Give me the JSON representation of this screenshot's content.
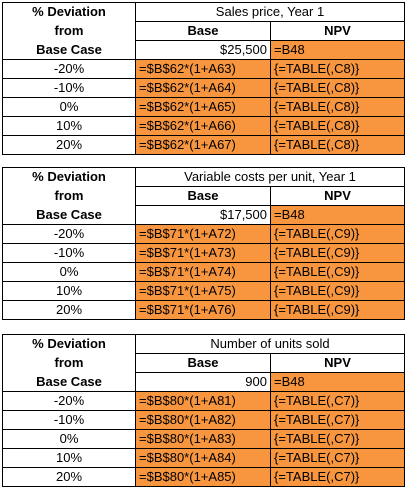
{
  "tables": [
    {
      "header_lines": [
        "% Deviation",
        "from",
        "Base Case"
      ],
      "title": "Sales price, Year 1",
      "col_base": "Base",
      "col_npv": "NPV",
      "base_value": "$25,500",
      "base_npv": "=B48",
      "rows": [
        {
          "pct": "-20%",
          "formula": "=$B$62*(1+A63)",
          "npv": "{=TABLE(,C8)}"
        },
        {
          "pct": "-10%",
          "formula": "=$B$62*(1+A64)",
          "npv": "{=TABLE(,C8)}"
        },
        {
          "pct": "0%",
          "formula": "=$B$62*(1+A65)",
          "npv": "{=TABLE(,C8)}"
        },
        {
          "pct": "10%",
          "formula": "=$B$62*(1+A66)",
          "npv": "{=TABLE(,C8)}"
        },
        {
          "pct": "20%",
          "formula": "=$B$62*(1+A67)",
          "npv": "{=TABLE(,C8)}"
        }
      ]
    },
    {
      "header_lines": [
        "% Deviation",
        "from",
        "Base Case"
      ],
      "title": "Variable costs per unit, Year 1",
      "col_base": "Base",
      "col_npv": "NPV",
      "base_value": "$17,500",
      "base_npv": "=B48",
      "rows": [
        {
          "pct": "-20%",
          "formula": "=$B$71*(1+A72)",
          "npv": "{=TABLE(,C9)}"
        },
        {
          "pct": "-10%",
          "formula": "=$B$71*(1+A73)",
          "npv": "{=TABLE(,C9)}"
        },
        {
          "pct": "0%",
          "formula": "=$B$71*(1+A74)",
          "npv": "{=TABLE(,C9)}"
        },
        {
          "pct": "10%",
          "formula": "=$B$71*(1+A75)",
          "npv": "{=TABLE(,C9)}"
        },
        {
          "pct": "20%",
          "formula": "=$B$71*(1+A76)",
          "npv": "{=TABLE(,C9)}"
        }
      ]
    },
    {
      "header_lines": [
        "% Deviation",
        "from",
        "Base Case"
      ],
      "title": "Number of units sold",
      "col_base": "Base",
      "col_npv": "NPV",
      "base_value": "900",
      "base_npv": "=B48",
      "rows": [
        {
          "pct": "-20%",
          "formula": "=$B$80*(1+A81)",
          "npv": "{=TABLE(,C7)}"
        },
        {
          "pct": "-10%",
          "formula": "=$B$80*(1+A82)",
          "npv": "{=TABLE(,C7)}"
        },
        {
          "pct": "0%",
          "formula": "=$B$80*(1+A83)",
          "npv": "{=TABLE(,C7)}"
        },
        {
          "pct": "10%",
          "formula": "=$B$80*(1+A84)",
          "npv": "{=TABLE(,C7)}"
        },
        {
          "pct": "20%",
          "formula": "=$B$80*(1+A85)",
          "npv": "{=TABLE(,C7)}"
        }
      ]
    }
  ],
  "colors": {
    "highlight": "#f8963f",
    "border": "#000000",
    "background": "#ffffff"
  }
}
